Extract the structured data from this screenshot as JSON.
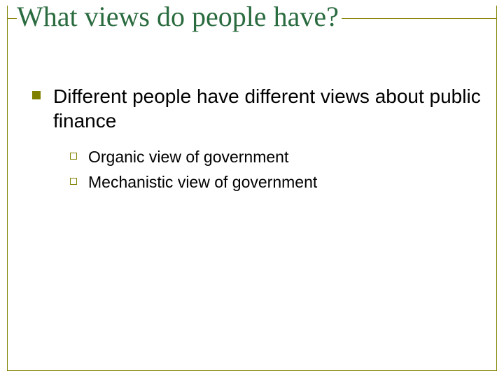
{
  "slide": {
    "title": "What views do people have?",
    "title_color": "#2a6b3f",
    "title_fontsize": 40,
    "title_font": "Times New Roman",
    "border_color": "#808000",
    "background_color": "#ffffff",
    "body_font": "Arial",
    "body_color": "#000000",
    "bullets": {
      "level1_style": "filled-square",
      "level1_color": "#808000",
      "level1_size": 12,
      "level1_fontsize": 28,
      "level2_style": "outline-square",
      "level2_color": "#808000",
      "level2_size": 10,
      "level2_fontsize": 23
    },
    "content": [
      {
        "text": "Different people have different views about public finance",
        "children": [
          {
            "text": "Organic view of government"
          },
          {
            "text": "Mechanistic view of government"
          }
        ]
      }
    ]
  }
}
